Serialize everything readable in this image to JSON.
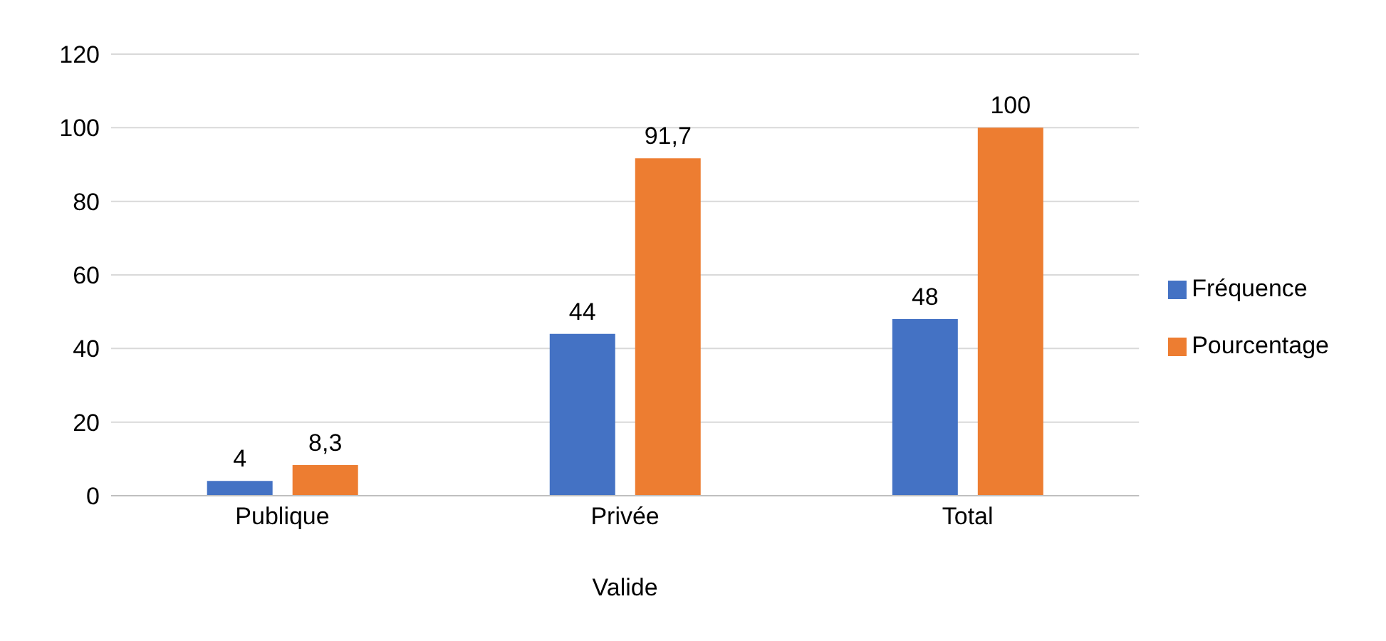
{
  "chart_data": {
    "type": "bar",
    "categories": [
      "Publique",
      "Privée",
      "Total"
    ],
    "xlabel": "Valide",
    "series": [
      {
        "name": "Fréquence",
        "color": "#4472c4",
        "values": [
          4,
          44,
          48
        ],
        "value_labels": [
          "4",
          "44",
          "48"
        ]
      },
      {
        "name": "Pourcentage",
        "color": "#ed7d31",
        "values": [
          8.3,
          91.7,
          100
        ],
        "value_labels": [
          "8,3",
          "91,7",
          "100"
        ]
      }
    ],
    "ylim": [
      0,
      120
    ],
    "yticks": [
      0,
      20,
      40,
      60,
      80,
      100,
      120
    ],
    "grid": "y",
    "legend": "right"
  }
}
